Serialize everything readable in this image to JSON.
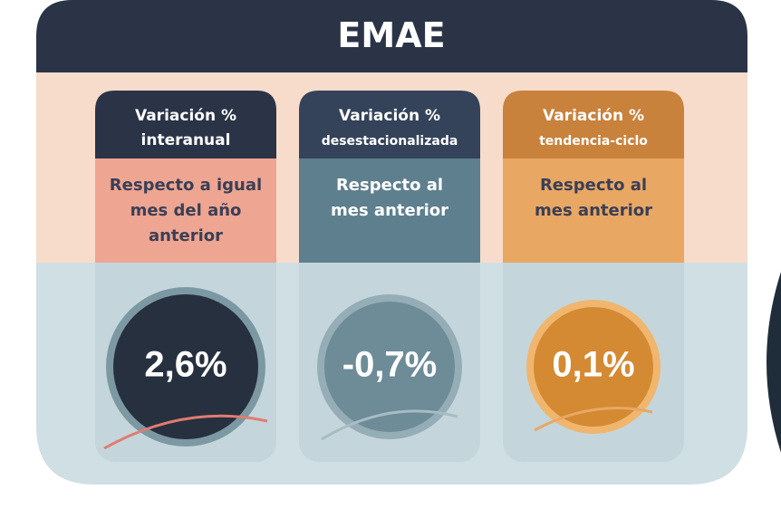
{
  "header": {
    "title": "EMAE"
  },
  "cards": [
    {
      "title": [
        "Variación %",
        "interanual"
      ],
      "description": [
        "Respecto a igual",
        "mes del año",
        "anterior"
      ],
      "value": "2,6%"
    },
    {
      "title": [
        "Variación %",
        "desestacionalizada"
      ],
      "description": [
        "Respecto al",
        "mes anterior"
      ],
      "value": "-0,7%"
    },
    {
      "title": [
        "Variación %",
        "tendencia-ciclo"
      ],
      "description": [
        "Respecto al",
        "mes anterior"
      ],
      "value": "0,1%"
    }
  ]
}
